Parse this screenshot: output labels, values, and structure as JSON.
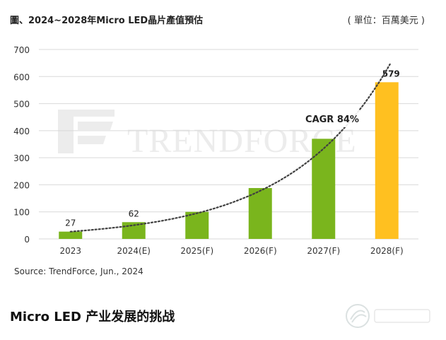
{
  "title": "圖、2024~2028年Micro LED晶片產值預估",
  "unit": "( 單位：百萬美元 )",
  "source": "Source: TrendForce, Jun., 2024",
  "article_heading": "Micro LED 产业发展的挑战",
  "watermark_text": "TRENDFORCE",
  "annotation": "CAGR 84%",
  "colors": {
    "bar": "#7ab51d",
    "bar_highlight": "#ffc020",
    "trend": "#404040",
    "grid": "#d9d9d9",
    "watermark": "#ececec"
  },
  "chart_data": {
    "type": "bar",
    "categories": [
      "2023",
      "2024(E)",
      "2025(F)",
      "2026(F)",
      "2027(F)",
      "2028(F)"
    ],
    "values": [
      27,
      62,
      100,
      188,
      370,
      579
    ],
    "data_labels": [
      "27",
      "62",
      "",
      "",
      "",
      "579"
    ],
    "highlight_index": 5,
    "yticks": [
      0,
      100,
      200,
      300,
      400,
      500,
      600,
      700
    ],
    "ylim": [
      0,
      700
    ],
    "grid": true,
    "trendline": "exponential, dotted",
    "xlabel": "",
    "ylabel": ""
  }
}
